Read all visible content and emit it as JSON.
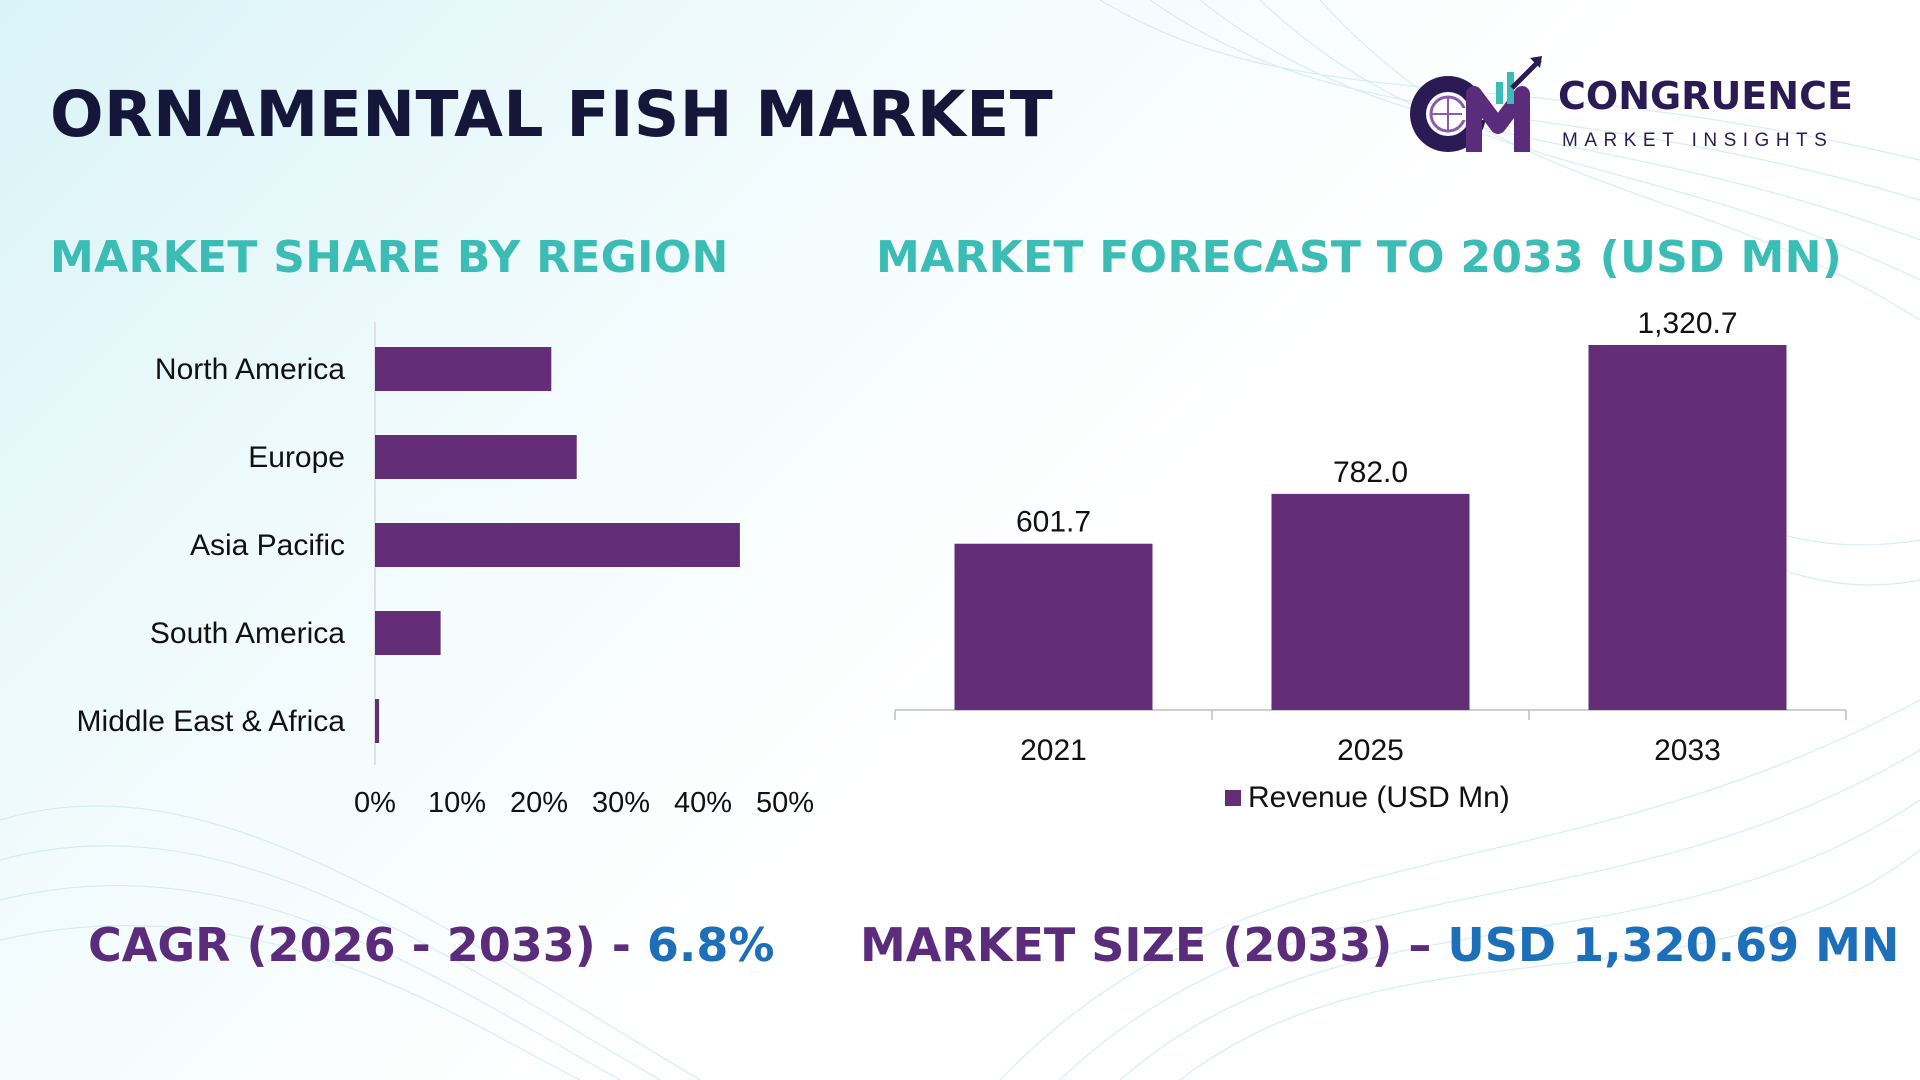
{
  "title": "ORNAMENTAL FISH MARKET",
  "logo": {
    "name": "CONGRUENCE",
    "sub": "MARKET INSIGHTS"
  },
  "colors": {
    "bar": "#632d77",
    "title_teal": "#3bbdb5",
    "accent_blue": "#1c6fb8",
    "stat_purple": "#5b2b7c"
  },
  "chart_data": [
    {
      "type": "bar",
      "orientation": "horizontal",
      "title": "MARKET SHARE BY REGION",
      "categories": [
        "North America",
        "Europe",
        "Asia Pacific",
        "South America",
        "Middle East & Africa"
      ],
      "values": [
        21.5,
        24.6,
        44.5,
        8,
        0.5
      ],
      "value_unit": "%",
      "xlim": [
        0,
        50
      ],
      "x_ticks": [
        "0%",
        "10%",
        "20%",
        "30%",
        "40%",
        "50%"
      ],
      "grid": false
    },
    {
      "type": "bar",
      "title": "MARKET FORECAST TO 2033 (USD MN)",
      "categories": [
        "2021",
        "2025",
        "2033"
      ],
      "series": [
        {
          "name": "Revenue (USD Mn)",
          "values": [
            601.7,
            782.0,
            1320.7
          ],
          "labels": [
            "601.7",
            "782.0",
            "1,320.7"
          ]
        }
      ],
      "ylim": [
        0,
        1320.7
      ],
      "legend": "bottom",
      "grid": false
    }
  ],
  "stats": {
    "cagr_label": "CAGR (2026 - 2033) - ",
    "cagr_value": "6.8%",
    "size_label": "MARKET SIZE (2033) – ",
    "size_value": "USD 1,320.69 MN"
  }
}
